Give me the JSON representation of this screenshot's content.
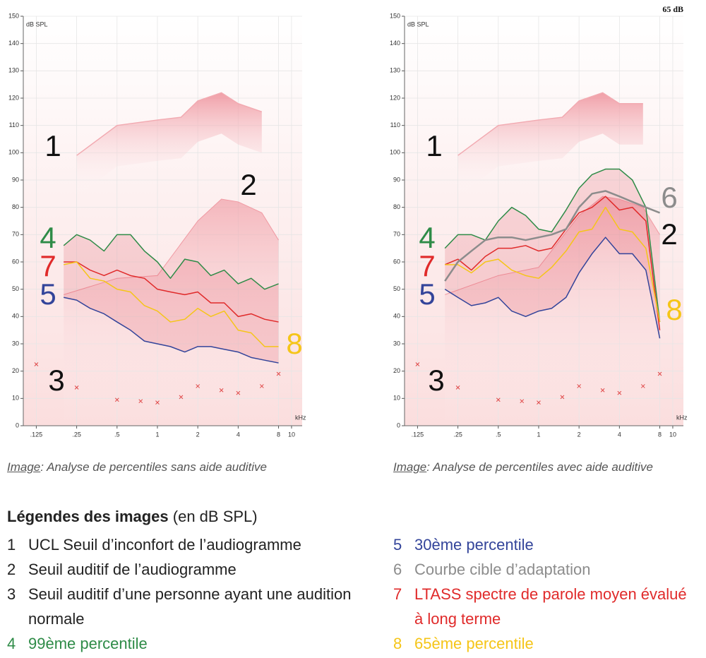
{
  "chart_data": [
    {
      "type": "line",
      "y_label": "dB SPL",
      "x_label": "kHz",
      "log_x": true,
      "grid": true,
      "xlim": [
        0.1,
        12
      ],
      "ylim": [
        0,
        150
      ],
      "yticks": [
        0,
        10,
        20,
        30,
        40,
        50,
        60,
        70,
        80,
        90,
        100,
        110,
        120,
        130,
        140,
        150
      ],
      "xticks": [
        {
          "value": 0.125,
          "label": ".125"
        },
        {
          "value": 0.25,
          "label": ".25"
        },
        {
          "value": 0.5,
          "label": ".5"
        },
        1,
        2,
        4,
        8,
        10
      ],
      "x": [
        0.2,
        0.25,
        0.315,
        0.4,
        0.5,
        0.63,
        0.8,
        1,
        1.25,
        1.6,
        2,
        2.5,
        3.15,
        4,
        5,
        6.3,
        8
      ],
      "series": [
        {
          "color": "#2e8b47",
          "values": [
            66,
            70,
            68,
            64,
            70,
            70,
            64,
            60,
            54,
            61,
            60,
            55,
            57,
            52,
            54,
            50,
            52
          ]
        },
        {
          "color": "#e02a2a",
          "values": [
            60,
            60,
            57,
            55,
            57,
            55,
            54,
            50,
            49,
            48,
            49,
            45,
            45,
            40,
            41,
            39,
            38
          ]
        },
        {
          "color": "#f5c518",
          "values": [
            59,
            60,
            54,
            53,
            50,
            49,
            44,
            42,
            38,
            39,
            43,
            40,
            42,
            35,
            34,
            29,
            29
          ]
        },
        {
          "color": "#33449a",
          "values": [
            47,
            46,
            43,
            41,
            38,
            35,
            31,
            30,
            29,
            27,
            29,
            29,
            28,
            27,
            25,
            24,
            23
          ]
        }
      ],
      "ucl": {
        "color": "#f2aab1",
        "x": [
          0.25,
          0.5,
          1,
          1.5,
          2,
          3,
          4,
          6
        ],
        "values": [
          99,
          110,
          112,
          113,
          119,
          122,
          118,
          115
        ]
      },
      "threshold": {
        "color": "#f09aa3",
        "x": [
          0.2,
          0.5,
          1,
          2,
          3,
          4,
          6,
          8
        ],
        "values": [
          48,
          54,
          55,
          75,
          83,
          82,
          78,
          68
        ]
      },
      "normal_threshold": {
        "color": "#e04848",
        "x": [
          0.125,
          0.25,
          0.5,
          0.75,
          1,
          1.5,
          2,
          3,
          4,
          6,
          8
        ],
        "values": [
          22.5,
          14,
          9.5,
          9,
          8.5,
          10.5,
          14.5,
          13,
          12,
          14.5,
          19
        ]
      },
      "annotations": [
        {
          "text": "1",
          "color": "#111111"
        },
        {
          "text": "2",
          "color": "#111111"
        },
        {
          "text": "3",
          "color": "#111111"
        },
        {
          "text": "4",
          "color": "#2e8b47"
        },
        {
          "text": "7",
          "color": "#e02a2a"
        },
        {
          "text": "5",
          "color": "#33449a"
        },
        {
          "text": "8",
          "color": "#f5c518"
        }
      ]
    },
    {
      "type": "line",
      "status": "65 dB",
      "y_label": "dB SPL",
      "x_label": "kHz",
      "log_x": true,
      "grid": true,
      "xlim": [
        0.1,
        12
      ],
      "ylim": [
        0,
        150
      ],
      "yticks": [
        0,
        10,
        20,
        30,
        40,
        50,
        60,
        70,
        80,
        90,
        100,
        110,
        120,
        130,
        140,
        150
      ],
      "xticks": [
        {
          "value": 0.125,
          "label": ".125"
        },
        {
          "value": 0.25,
          "label": ".25"
        },
        {
          "value": 0.5,
          "label": ".5"
        },
        1,
        2,
        4,
        8,
        10
      ],
      "x": [
        0.2,
        0.25,
        0.315,
        0.4,
        0.5,
        0.63,
        0.8,
        1,
        1.25,
        1.6,
        2,
        2.5,
        3.15,
        4,
        5,
        6.3,
        8
      ],
      "series": [
        {
          "color": "#2e8b47",
          "values": [
            65,
            70,
            70,
            68,
            75,
            80,
            77,
            72,
            71,
            79,
            87,
            92,
            94,
            94,
            90,
            80,
            38
          ]
        },
        {
          "color": "#e02a2a",
          "values": [
            59,
            61,
            57,
            62,
            65,
            65,
            66,
            64,
            65,
            72,
            78,
            80,
            84,
            79,
            80,
            75,
            35
          ]
        },
        {
          "color": "#f5c518",
          "values": [
            59,
            59,
            56,
            60,
            61,
            57,
            55,
            54,
            58,
            64,
            71,
            72,
            80,
            72,
            71,
            65,
            38
          ]
        },
        {
          "color": "#33449a",
          "values": [
            50,
            47,
            44,
            45,
            47,
            42,
            40,
            42,
            43,
            47,
            56,
            63,
            69,
            63,
            63,
            57,
            32
          ]
        },
        {
          "color": "#8c8c8c",
          "values": [
            53,
            60,
            64,
            68,
            69,
            69,
            68,
            69,
            70,
            72,
            80,
            85,
            86,
            84,
            82,
            80,
            78
          ]
        }
      ],
      "ucl": {
        "color": "#f2aab1",
        "x": [
          0.25,
          0.5,
          1,
          1.5,
          2,
          3,
          4,
          6
        ],
        "values": [
          99,
          110,
          112,
          113,
          119,
          122,
          118,
          118
        ]
      },
      "threshold": {
        "color": "#f09aa3",
        "x": [
          0.2,
          0.5,
          1,
          2,
          3,
          4,
          6,
          8
        ],
        "values": [
          48,
          55,
          58,
          77,
          84,
          83,
          80,
          70
        ]
      },
      "normal_threshold": {
        "color": "#e04848",
        "x": [
          0.125,
          0.25,
          0.5,
          0.75,
          1,
          1.5,
          2,
          3,
          4,
          6,
          8
        ],
        "values": [
          22.5,
          14,
          9.5,
          9,
          8.5,
          10.5,
          14.5,
          13,
          12,
          14.5,
          19
        ]
      },
      "annotations": [
        {
          "text": "1",
          "color": "#111111"
        },
        {
          "text": "6",
          "color": "#8c8c8c"
        },
        {
          "text": "2",
          "color": "#111111"
        },
        {
          "text": "3",
          "color": "#111111"
        },
        {
          "text": "4",
          "color": "#2e8b47"
        },
        {
          "text": "7",
          "color": "#e02a2a"
        },
        {
          "text": "5",
          "color": "#33449a"
        },
        {
          "text": "8",
          "color": "#f5c518"
        }
      ]
    }
  ],
  "captions": [
    {
      "prefix": "Image",
      "text": ": Analyse de percentiles sans aide auditive"
    },
    {
      "prefix": "Image",
      "text": ": Analyse de percentiles avec aide auditive"
    }
  ],
  "legend": {
    "title": "Légendes des images",
    "unit": " (en dB SPL)",
    "items": [
      {
        "number": "1",
        "text": "UCL Seuil d’inconfort de l’audiogramme",
        "color": "#222222"
      },
      {
        "number": "2",
        "text": "Seuil auditif de l’audiogramme",
        "color": "#222222"
      },
      {
        "number": "3",
        "text": "Seuil auditif d’une personne ayant une audition normale",
        "color": "#222222"
      },
      {
        "number": "4",
        "text": "99ème percentile",
        "color": "#2e8b47"
      },
      {
        "number": "5",
        "text": "30ème percentile",
        "color": "#33449a"
      },
      {
        "number": "6",
        "text": "Courbe cible d’adaptation",
        "color": "#8c8c8c"
      },
      {
        "number": "7",
        "text": "LTASS spectre de parole moyen évalué à long terme",
        "color": "#e02a2a"
      },
      {
        "number": "8",
        "text": "65ème percentile",
        "color": "#f5c518"
      }
    ]
  }
}
